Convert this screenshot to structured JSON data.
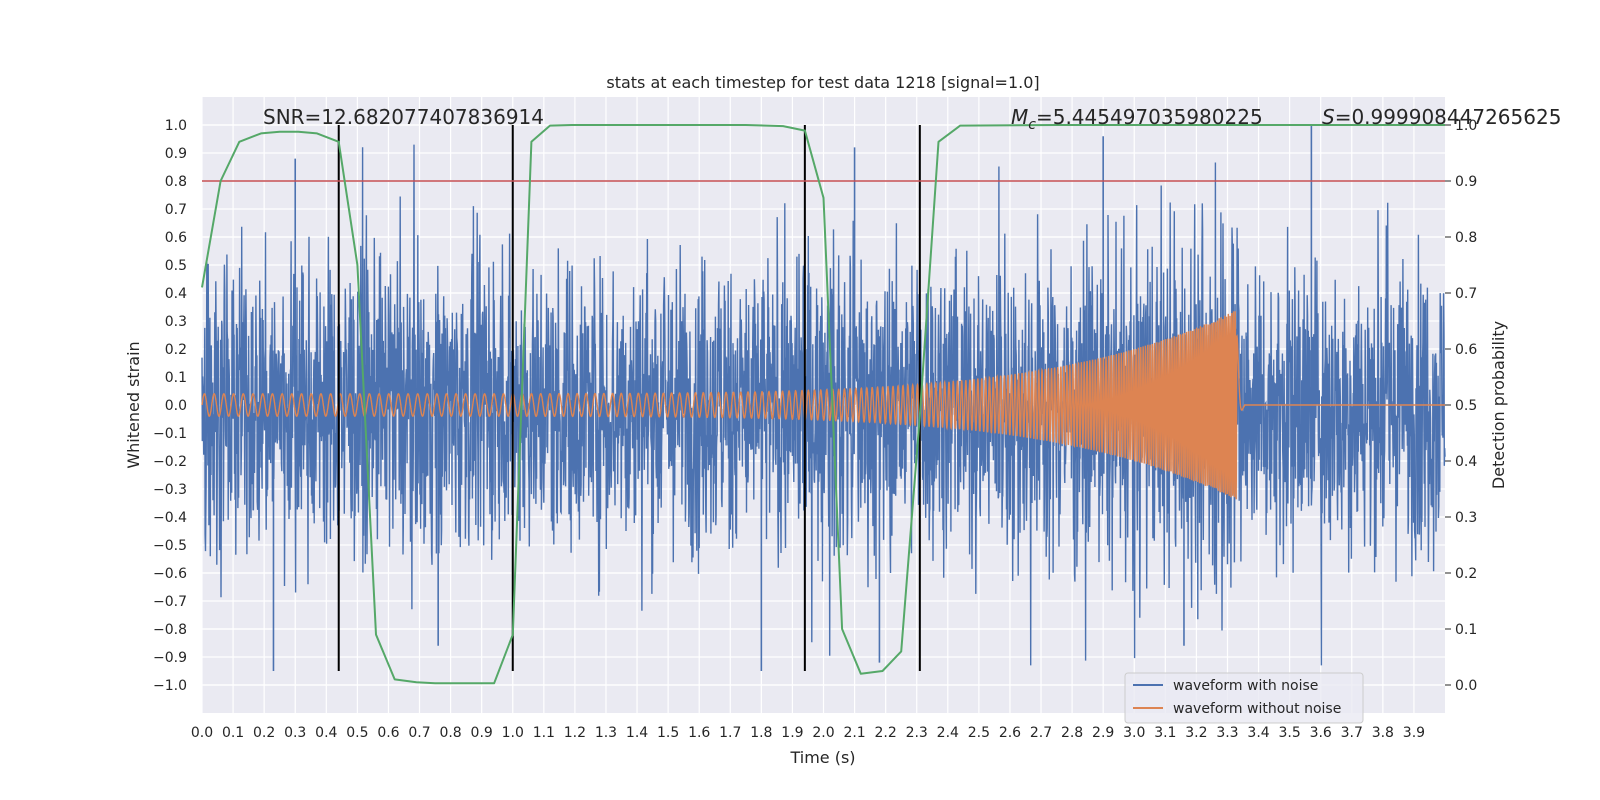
{
  "chart_data": {
    "type": "line",
    "title": "stats at each timestep for test data 1218 [signal=1.0]",
    "xlabel": "Time (s)",
    "ylabel": "Whitened strain",
    "ylabel_right": "Detection probability",
    "xlim": [
      0.0,
      4.0
    ],
    "ylim": [
      -1.1,
      1.1
    ],
    "ylim_right": [
      -0.05,
      1.05
    ],
    "x_ticks": [
      "0.0",
      "0.1",
      "0.2",
      "0.3",
      "0.4",
      "0.5",
      "0.6",
      "0.7",
      "0.8",
      "0.9",
      "1.0",
      "1.1",
      "1.2",
      "1.3",
      "1.4",
      "1.5",
      "1.6",
      "1.7",
      "1.8",
      "1.9",
      "2.0",
      "2.1",
      "2.2",
      "2.3",
      "2.4",
      "2.5",
      "2.6",
      "2.7",
      "2.8",
      "2.9",
      "3.0",
      "3.1",
      "3.2",
      "3.3",
      "3.4",
      "3.5",
      "3.6",
      "3.7",
      "3.8",
      "3.9"
    ],
    "y_ticks": [
      "1.0",
      "0.9",
      "0.8",
      "0.7",
      "0.6",
      "0.5",
      "0.4",
      "0.3",
      "0.2",
      "0.1",
      "0.0",
      "−0.1",
      "−0.2",
      "−0.3",
      "−0.4",
      "−0.5",
      "−0.6",
      "−0.7",
      "−0.8",
      "−0.9",
      "−1.0"
    ],
    "y_ticks_right": [
      "1.0",
      "0.9",
      "0.8",
      "0.7",
      "0.6",
      "0.5",
      "0.4",
      "0.3",
      "0.2",
      "0.1",
      "0.0"
    ],
    "annotations": {
      "snr": "SNR=12.682077407836914",
      "mc_symbol": "M",
      "mc_sub": "c",
      "mc_value": "=5.445497035980225",
      "s_symbol": "S",
      "s_value": "=0.999908447265625"
    },
    "threshold": {
      "value": 0.9,
      "axis": "right",
      "color": "#c44e52"
    },
    "vertical_lines_x": [
      0.44,
      1.0,
      1.94,
      2.31
    ],
    "vertical_lines_range": [
      -0.95,
      1.0
    ],
    "detection_probability": {
      "name": "detection probability",
      "color": "#55a868",
      "x": [
        0.0,
        0.06,
        0.12,
        0.19,
        0.25,
        0.31,
        0.37,
        0.44,
        0.5,
        0.56,
        0.62,
        0.69,
        0.75,
        0.81,
        0.87,
        0.94,
        1.0,
        1.06,
        1.12,
        1.19,
        1.25,
        1.5,
        1.75,
        1.87,
        1.94,
        2.0,
        2.06,
        2.12,
        2.19,
        2.25,
        2.31,
        2.37,
        2.44,
        2.75,
        3.0,
        3.5,
        4.0
      ],
      "y": [
        0.71,
        0.9,
        0.97,
        0.985,
        0.988,
        0.988,
        0.985,
        0.97,
        0.75,
        0.09,
        0.01,
        0.005,
        0.003,
        0.003,
        0.003,
        0.003,
        0.09,
        0.97,
        0.999,
        1.0,
        1.0,
        1.0,
        1.0,
        0.998,
        0.99,
        0.87,
        0.1,
        0.02,
        0.025,
        0.06,
        0.48,
        0.97,
        0.999,
        1.0,
        1.0,
        1.0,
        1.0
      ]
    },
    "series": [
      {
        "name": "waveform with noise",
        "color": "#4c72b0",
        "description": "noisy whitened strain, amplitude mostly within about ±0.6, extremes near ±0.95",
        "envelope_amplitude": 0.6,
        "peaks": [
          {
            "x": 0.3,
            "y": 0.88
          },
          {
            "x": 0.23,
            "y": -0.95
          },
          {
            "x": 1.8,
            "y": -0.95
          },
          {
            "x": 2.1,
            "y": 0.92
          },
          {
            "x": 3.57,
            "y": 1.0
          },
          {
            "x": 2.9,
            "y": 0.96
          },
          {
            "x": 0.76,
            "y": -0.86
          },
          {
            "x": 3.16,
            "y": -0.86
          },
          {
            "x": 2.18,
            "y": -0.92
          }
        ]
      },
      {
        "name": "waveform without noise",
        "color": "#dd8452",
        "description": "chirp with amplitude growing from 0.04 to about 0.34, frequency increasing, merging at t≈3.33 s then ringdown to 0",
        "amplitude_start": 0.04,
        "amplitude_peak": 0.34,
        "merger_time": 3.33,
        "freq_start_hz": 32,
        "freq_end_hz": 180
      }
    ],
    "legend": [
      "waveform with noise",
      "waveform without noise"
    ],
    "legend_position": "lower-right",
    "grid": true
  }
}
